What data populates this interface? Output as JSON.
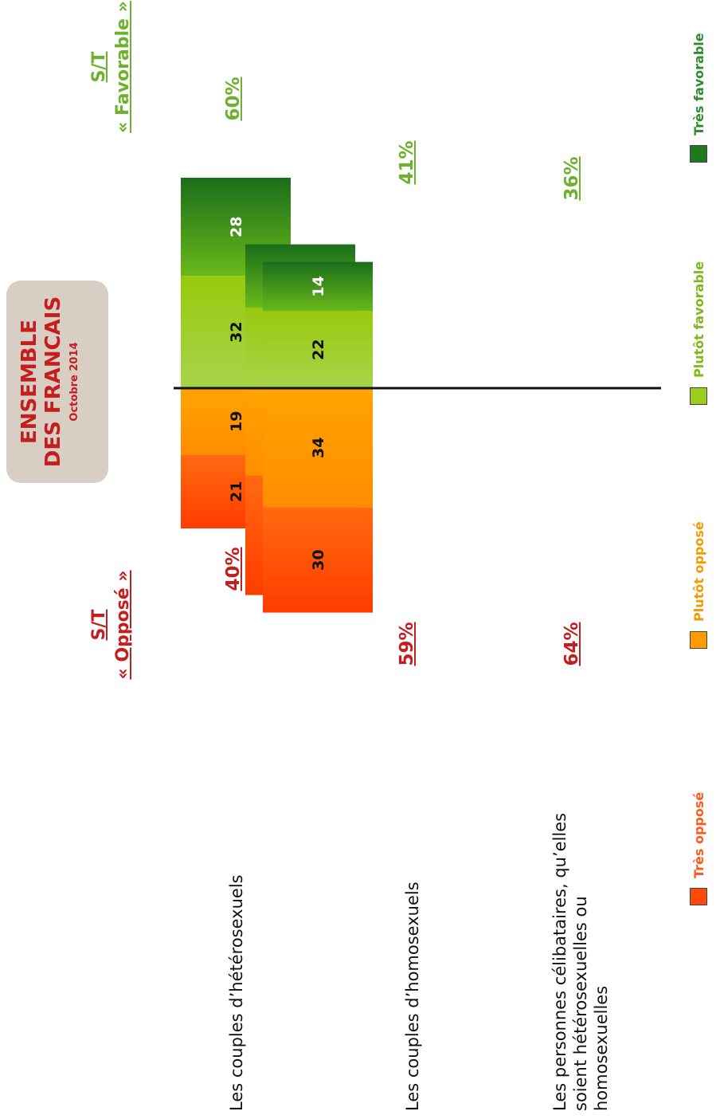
{
  "title": {
    "line1": "ENSEMBLE",
    "line2": "DES FRANCAIS",
    "subtitle": "Octobre 2014"
  },
  "headers": {
    "opposed": {
      "line1": "S/T",
      "line2": "« Opposé »"
    },
    "favorable": {
      "line1": "S/T",
      "line2": "« Favorable »"
    }
  },
  "colors": {
    "tres_oppose": "#ff4a0a",
    "plutot_oppose": "#ff9a00",
    "plutot_favorable": "#9acd1e",
    "tres_favorable": "#1f7a1f",
    "opposed_text": "#c41e1e",
    "favorable_text": "#6cb22e"
  },
  "chart_data": {
    "type": "bar",
    "orientation": "diverging stacked horizontal",
    "categories": [
      "Les couples d’hétérosexuels",
      "Les couples d’homosexuels",
      "Les personnes célibataires, qu’elles soient hétérosexuelles ou homosexuelles"
    ],
    "series": [
      {
        "name": "Très opposé",
        "side": "opposed",
        "values": [
          21,
          34,
          30
        ]
      },
      {
        "name": "Plutôt opposé",
        "side": "opposed",
        "values": [
          19,
          25,
          34
        ]
      },
      {
        "name": "Plutôt favorable",
        "side": "favorable",
        "values": [
          32,
          23,
          22
        ]
      },
      {
        "name": "Très favorable",
        "side": "favorable",
        "values": [
          28,
          18,
          14
        ]
      }
    ],
    "totals_opposed": [
      "40%",
      "59%",
      "64%"
    ],
    "totals_favorable": [
      "60%",
      "41%",
      "36%"
    ],
    "legend_position": "bottom"
  }
}
